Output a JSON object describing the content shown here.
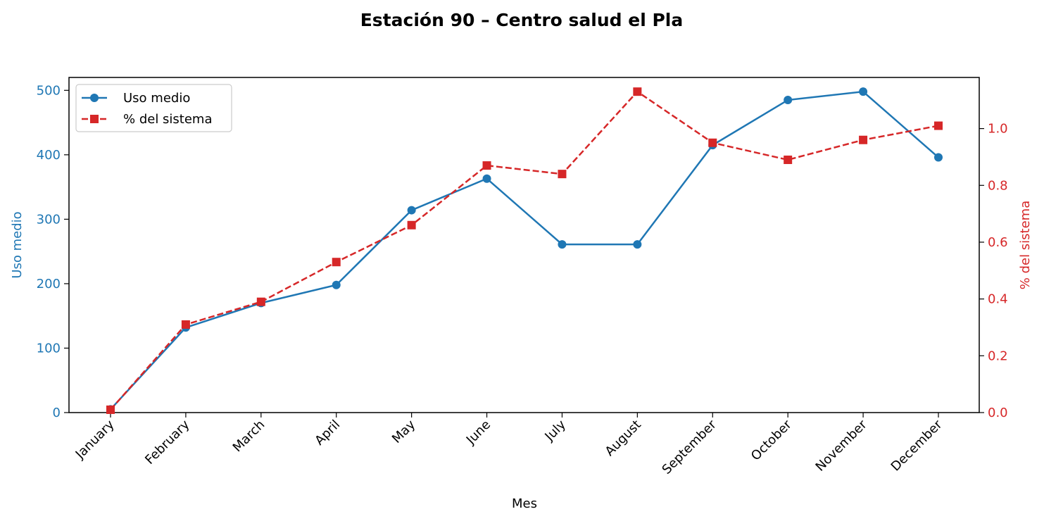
{
  "chart_data": {
    "type": "line",
    "title": "Estación 90 – Centro salud el Pla",
    "xlabel": "Mes",
    "ylabel_left": "Uso medio",
    "ylabel_right": "% del sistema",
    "categories": [
      "January",
      "February",
      "March",
      "April",
      "May",
      "June",
      "July",
      "August",
      "September",
      "October",
      "November",
      "December"
    ],
    "y_left_lim": [
      0,
      520
    ],
    "y_right_lim": [
      0,
      1.18
    ],
    "y_left_ticks": [
      0,
      100,
      200,
      300,
      400,
      500
    ],
    "y_right_ticks": [
      0.0,
      0.2,
      0.4,
      0.6,
      0.8,
      1.0
    ],
    "y_right_tick_labels": [
      "0.0",
      "0.2",
      "0.4",
      "0.6",
      "0.8",
      "1.0"
    ],
    "legend_position": "upper-left",
    "grid": false,
    "series": [
      {
        "name": "Uso medio",
        "axis": "left",
        "color": "#1f77b4",
        "marker": "circle",
        "linestyle": "solid",
        "values": [
          5,
          132,
          170,
          198,
          314,
          363,
          261,
          261,
          415,
          485,
          498,
          396
        ]
      },
      {
        "name": "% del sistema",
        "axis": "right",
        "color": "#d62728",
        "marker": "square",
        "linestyle": "dashed",
        "values": [
          0.01,
          0.31,
          0.39,
          0.53,
          0.66,
          0.87,
          0.84,
          1.13,
          0.95,
          0.89,
          0.96,
          1.01
        ]
      }
    ]
  }
}
